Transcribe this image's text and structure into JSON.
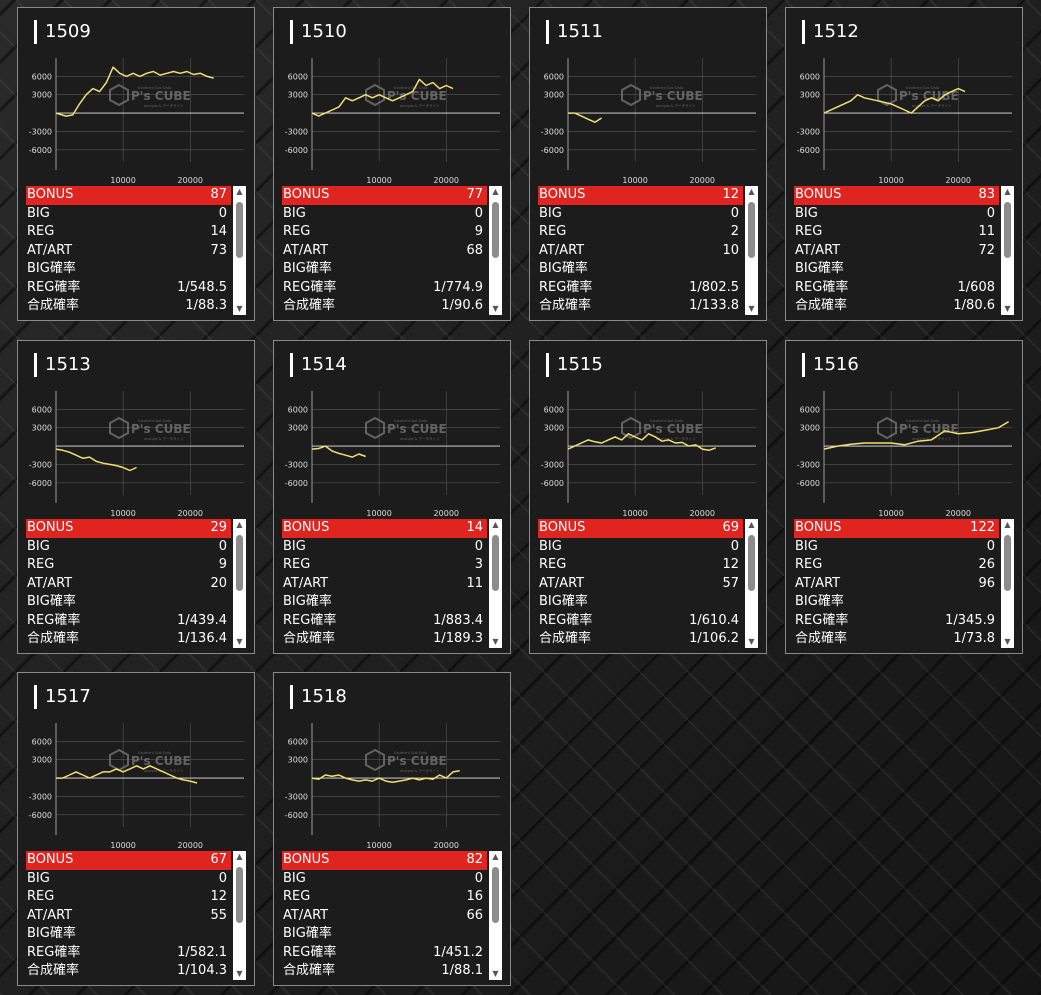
{
  "app": {
    "watermark_line1": "P's CUBE",
    "watermark_line2": "Excellent Slot Data",
    "watermark_line3": "analyze & データサイト"
  },
  "colors": {
    "card_bg": "#1c1c1c",
    "bonus_bar": "#e02420",
    "line": "#f0e070",
    "grid": "#555555"
  },
  "icons": {
    "scroll_up": "▲",
    "scroll_down": "▼"
  },
  "labels": {
    "bonus": "BONUS",
    "big": "BIG",
    "reg": "REG",
    "atart": "AT/ART",
    "big_rate": "BIG確率",
    "reg_rate": "REG確率",
    "total_rate": "合成確率"
  },
  "chart_axes": {
    "y_ticks": [
      "6000",
      "3000",
      "-3000",
      "-6000"
    ],
    "x_ticks": [
      "10000",
      "20000"
    ],
    "ylim": [
      -8000,
      9000
    ],
    "xlim": [
      0,
      28000
    ]
  },
  "machines": [
    {
      "id": "1509",
      "bonus": "87",
      "big": "0",
      "reg": "14",
      "atart": "73",
      "big_rate": "",
      "reg_rate": "1/548.5",
      "total_rate": "1/88.3",
      "chart_data": {
        "type": "line",
        "x": [
          0,
          1500,
          2500,
          3500,
          4500,
          5500,
          6500,
          7500,
          8500,
          9500,
          10500,
          11500,
          12500,
          13500,
          14500,
          15500,
          16500,
          17500,
          18500,
          19500,
          20500,
          21500,
          22500,
          23500
        ],
        "y": [
          0,
          -500,
          -300,
          1500,
          3000,
          4000,
          3500,
          5000,
          7500,
          6500,
          6000,
          6500,
          6000,
          6500,
          6800,
          6200,
          6500,
          6800,
          6500,
          6800,
          6300,
          6500,
          6000,
          5700
        ]
      }
    },
    {
      "id": "1510",
      "bonus": "77",
      "big": "0",
      "reg": "9",
      "atart": "68",
      "big_rate": "",
      "reg_rate": "1/774.9",
      "total_rate": "1/90.6",
      "chart_data": {
        "type": "line",
        "x": [
          0,
          1000,
          2000,
          3000,
          4000,
          5000,
          6000,
          7000,
          8000,
          9000,
          10000,
          11000,
          12000,
          13000,
          14000,
          15000,
          16000,
          17000,
          18000,
          19000,
          20000,
          21000
        ],
        "y": [
          0,
          -500,
          0,
          500,
          1000,
          2500,
          2000,
          2500,
          3000,
          2500,
          3000,
          2500,
          2000,
          2500,
          3000,
          3500,
          5500,
          4500,
          5000,
          4000,
          4500,
          4000
        ]
      }
    },
    {
      "id": "1511",
      "bonus": "12",
      "big": "0",
      "reg": "2",
      "atart": "10",
      "big_rate": "",
      "reg_rate": "1/802.5",
      "total_rate": "1/133.8",
      "chart_data": {
        "type": "line",
        "x": [
          0,
          1000,
          2000,
          3000,
          4000,
          5000
        ],
        "y": [
          0,
          0,
          -500,
          -1000,
          -1500,
          -800
        ]
      }
    },
    {
      "id": "1512",
      "bonus": "83",
      "big": "0",
      "reg": "11",
      "atart": "72",
      "big_rate": "",
      "reg_rate": "1/608",
      "total_rate": "1/80.6",
      "chart_data": {
        "type": "line",
        "x": [
          0,
          2000,
          4000,
          5000,
          6000,
          8000,
          10000,
          11000,
          12000,
          13000,
          14000,
          15000,
          16000,
          17000,
          18000,
          19000,
          20000,
          21000
        ],
        "y": [
          0,
          1000,
          2000,
          3000,
          2500,
          2000,
          1500,
          1000,
          500,
          0,
          1000,
          2000,
          2500,
          2000,
          3000,
          3500,
          4000,
          3500
        ]
      }
    },
    {
      "id": "1513",
      "bonus": "29",
      "big": "0",
      "reg": "9",
      "atart": "20",
      "big_rate": "",
      "reg_rate": "1/439.4",
      "total_rate": "1/136.4",
      "chart_data": {
        "type": "line",
        "x": [
          0,
          1000,
          2000,
          3000,
          4000,
          5000,
          6000,
          7000,
          8000,
          9000,
          10000,
          11000,
          12000
        ],
        "y": [
          -500,
          -700,
          -1000,
          -1500,
          -2000,
          -1800,
          -2500,
          -2800,
          -3000,
          -3200,
          -3500,
          -4000,
          -3500
        ]
      }
    },
    {
      "id": "1514",
      "bonus": "14",
      "big": "0",
      "reg": "3",
      "atart": "11",
      "big_rate": "",
      "reg_rate": "1/883.4",
      "total_rate": "1/189.3",
      "chart_data": {
        "type": "line",
        "x": [
          0,
          1000,
          2000,
          3000,
          4000,
          5000,
          6000,
          7000,
          8000
        ],
        "y": [
          -500,
          -400,
          0,
          -800,
          -1200,
          -1500,
          -1800,
          -1300,
          -1700
        ]
      }
    },
    {
      "id": "1515",
      "bonus": "69",
      "big": "0",
      "reg": "12",
      "atart": "57",
      "big_rate": "",
      "reg_rate": "1/610.4",
      "total_rate": "1/106.2",
      "chart_data": {
        "type": "line",
        "x": [
          0,
          1000,
          2000,
          3000,
          4000,
          5000,
          6000,
          7000,
          8000,
          9000,
          10000,
          11000,
          12000,
          13000,
          14000,
          15000,
          16000,
          17000,
          18000,
          19000,
          20000,
          21000,
          22000
        ],
        "y": [
          -500,
          0,
          500,
          1000,
          700,
          500,
          1000,
          1500,
          1000,
          2000,
          1500,
          1000,
          2000,
          1500,
          800,
          1000,
          500,
          600,
          0,
          200,
          -500,
          -700,
          -300
        ]
      }
    },
    {
      "id": "1516",
      "bonus": "122",
      "big": "0",
      "reg": "26",
      "atart": "96",
      "big_rate": "",
      "reg_rate": "1/345.9",
      "total_rate": "1/73.8",
      "chart_data": {
        "type": "line",
        "x": [
          0,
          2000,
          4000,
          6000,
          8000,
          10000,
          12000,
          14000,
          16000,
          18000,
          20000,
          22000,
          24000,
          26000,
          27500
        ],
        "y": [
          -500,
          0,
          300,
          500,
          500,
          500,
          200,
          800,
          1000,
          2500,
          2000,
          2200,
          2600,
          3000,
          4000
        ]
      }
    },
    {
      "id": "1517",
      "bonus": "67",
      "big": "0",
      "reg": "12",
      "atart": "55",
      "big_rate": "",
      "reg_rate": "1/582.1",
      "total_rate": "1/104.3",
      "chart_data": {
        "type": "line",
        "x": [
          0,
          1000,
          2000,
          3000,
          4000,
          5000,
          6000,
          7000,
          8000,
          9000,
          10000,
          11000,
          12000,
          13000,
          14000,
          15000,
          16000,
          17000,
          18000,
          19000,
          20000,
          21000
        ],
        "y": [
          0,
          0,
          500,
          1000,
          500,
          0,
          500,
          1000,
          1000,
          1500,
          1000,
          1500,
          2000,
          1500,
          2000,
          1500,
          1000,
          500,
          0,
          -300,
          -500,
          -800
        ]
      }
    },
    {
      "id": "1518",
      "bonus": "82",
      "big": "0",
      "reg": "16",
      "atart": "66",
      "big_rate": "",
      "reg_rate": "1/451.2",
      "total_rate": "1/88.1",
      "chart_data": {
        "type": "line",
        "x": [
          0,
          1000,
          2000,
          3000,
          4000,
          5000,
          6000,
          7000,
          8000,
          9000,
          10000,
          11000,
          12000,
          13000,
          14000,
          15000,
          16000,
          17000,
          18000,
          19000,
          20000,
          21000,
          22000
        ],
        "y": [
          0,
          -200,
          500,
          300,
          500,
          0,
          -300,
          -500,
          -300,
          -500,
          0,
          -500,
          -700,
          -500,
          -300,
          0,
          -300,
          0,
          -200,
          500,
          0,
          1000,
          1200
        ]
      }
    }
  ]
}
